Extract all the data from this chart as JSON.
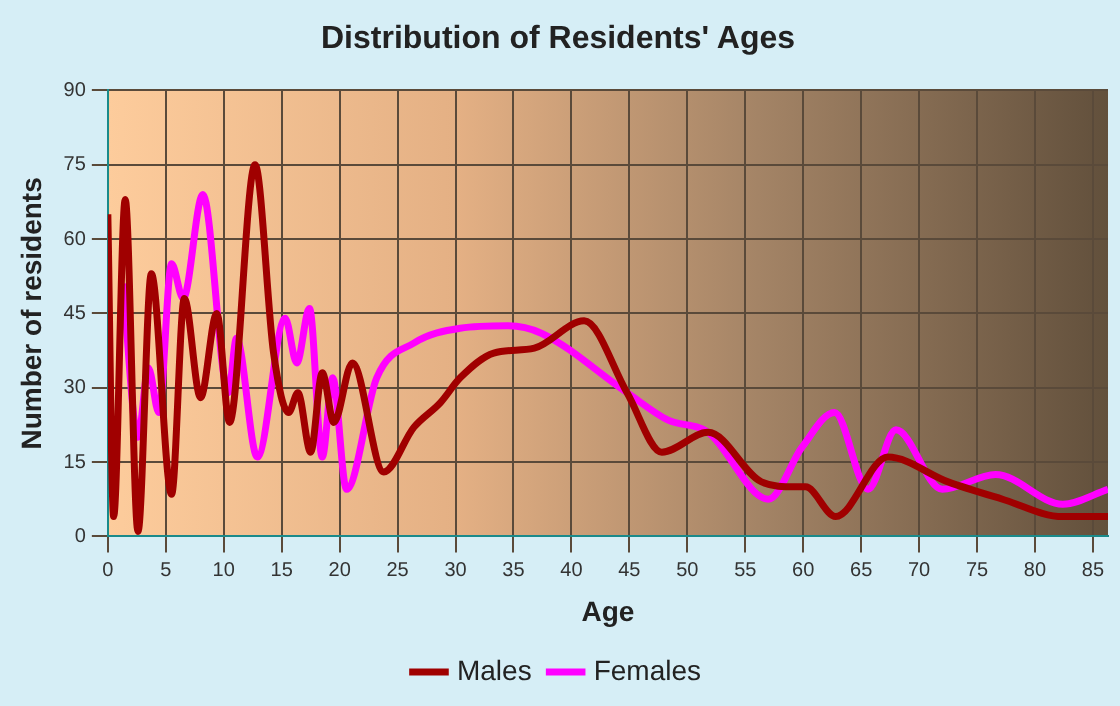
{
  "chart_data": {
    "type": "line",
    "title": "Distribution of Residents' Ages",
    "xlabel": "Age",
    "ylabel": "Number of residents",
    "xlim": [
      0,
      86.3
    ],
    "xticks": [
      0,
      5,
      10,
      15,
      20,
      25,
      30,
      35,
      40,
      45,
      50,
      55,
      60,
      65,
      70,
      75,
      80,
      85
    ],
    "ylim": [
      0,
      90
    ],
    "yticks": [
      0,
      15,
      30,
      45,
      60,
      75,
      90
    ],
    "grid": true,
    "legend": "bottom",
    "marker": "none",
    "line_style": "solid",
    "series": [
      {
        "name": "Males",
        "color": "#a00000",
        "x": [
          0,
          0.5,
          1.5,
          2.6,
          3.75,
          5.5,
          6.6,
          8,
          9.4,
          10.5,
          12.7,
          14.3,
          15.6,
          16.4,
          17.5,
          18.5,
          19.5,
          21.1,
          23.8,
          26.4,
          28.7,
          30.4,
          33.3,
          36.8,
          41.1,
          44.8,
          47.8,
          51.8,
          56.4,
          59.3,
          60.2,
          62.8,
          67.3,
          72.5,
          77.2,
          82.4,
          86.3
        ],
        "values": [
          65,
          4,
          68,
          1,
          53,
          8.5,
          48,
          28,
          45,
          23,
          75,
          37,
          25,
          29,
          17,
          33,
          23,
          35,
          13,
          22,
          27,
          32,
          37,
          38,
          43.5,
          29,
          17,
          21,
          11,
          10,
          10,
          4,
          16,
          11,
          7.5,
          4,
          4
        ]
      },
      {
        "name": "Females",
        "color": "#ff00ff",
        "x": [
          1.3,
          2.6,
          3.5,
          4.4,
          5.5,
          6.5,
          8.2,
          10.4,
          11.1,
          12.9,
          15.3,
          16.3,
          17.4,
          18.5,
          19.4,
          20.6,
          23.2,
          26.4,
          30.4,
          34.5,
          37.4,
          44.8,
          48.3,
          51.8,
          57,
          59.9,
          62.7,
          65.6,
          68,
          72,
          76.6,
          82.4,
          86.3
        ],
        "values": [
          51,
          20,
          34,
          25,
          55,
          48,
          69,
          29,
          40,
          16,
          44,
          35,
          46,
          16,
          32,
          9.5,
          32,
          39,
          42,
          42.5,
          41,
          29,
          23.5,
          21,
          7.5,
          18,
          25,
          9.5,
          21.5,
          9.5,
          12.5,
          6.5,
          9.5
        ]
      }
    ]
  }
}
